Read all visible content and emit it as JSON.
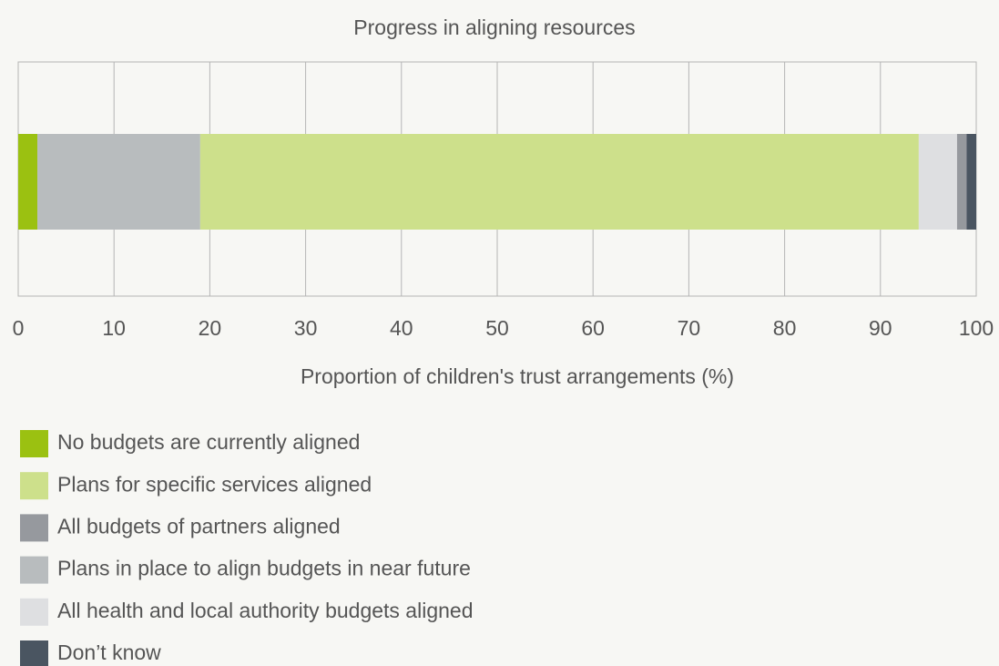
{
  "chart_data": {
    "type": "stacked-bar",
    "orientation": "horizontal",
    "title": "Progress in aligning resources",
    "x_label": "Proportion of children's trust arrangements (%)",
    "xlim": [
      0,
      100
    ],
    "xticks": [
      0,
      10,
      20,
      30,
      40,
      50,
      60,
      70,
      80,
      90,
      100
    ],
    "grid": true,
    "legend": "bottom",
    "series": [
      {
        "name": "No budgets are currently aligned",
        "color": "#9bc111",
        "values": [
          2
        ]
      },
      {
        "name": "Plans for specific services aligned",
        "color": "#cde08b",
        "values": [
          75
        ]
      },
      {
        "name": "All budgets of partners aligned",
        "color": "#96999e",
        "values": [
          1
        ]
      },
      {
        "name": "Plans in place to align budgets in near future",
        "color": "#b8bcbe",
        "values": [
          17
        ]
      },
      {
        "name": "All health and local authority budgets aligned",
        "color": "#dedfe1",
        "values": [
          4
        ]
      },
      {
        "name": "Don’t know",
        "color": "#4a5561",
        "values": [
          1
        ]
      }
    ]
  }
}
